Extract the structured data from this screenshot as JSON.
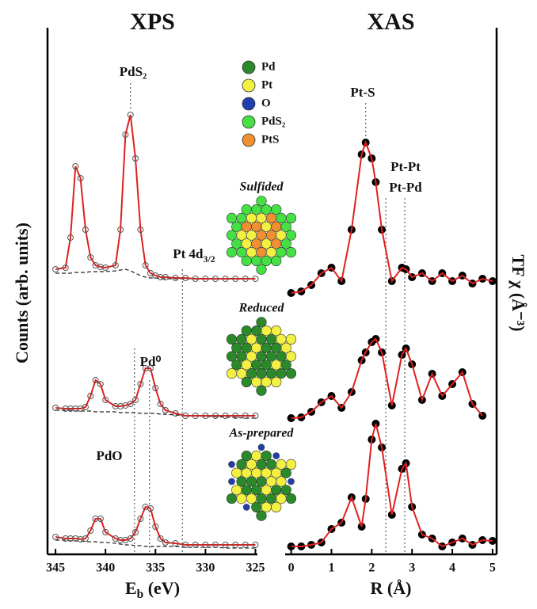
{
  "chart_data": [
    {
      "type": "line",
      "title": "XPS",
      "y_label": "Counts (arb. units)",
      "y_axis_side": "left",
      "x_label": {
        "text": "E",
        "sub": "b",
        "tail": " (eV)"
      },
      "xlim": [
        345.8,
        324.8
      ],
      "xticks": [
        345,
        340,
        335,
        330,
        325
      ],
      "ylim": [
        0,
        66
      ],
      "fit_color": "#e02020",
      "data_color": "#555555",
      "background_color": "#222222",
      "x": [
        345,
        344,
        343.5,
        343,
        342.5,
        342,
        341.5,
        341,
        340.5,
        340,
        339,
        338.5,
        338,
        337.5,
        337,
        336.5,
        336,
        335.5,
        335,
        334.5,
        334,
        333,
        332,
        331,
        330,
        329,
        328,
        327,
        326,
        325
      ],
      "series": [
        {
          "values": [
            36.0,
            36.2,
            40,
            49,
            47.5,
            41,
            37.5,
            36.5,
            36.3,
            36.2,
            36.5,
            41,
            53,
            55.5,
            50,
            41,
            36.5,
            35.5,
            35.2,
            35,
            35,
            34.9,
            34.9,
            34.8,
            34.8,
            34.8,
            34.8,
            34.8,
            34.8,
            34.8
          ],
          "background": [
            35.5,
            35.5,
            35.5,
            35.6,
            35.6,
            35.6,
            35.7,
            35.7,
            35.7,
            35.7,
            35.8,
            35.9,
            36,
            35.8,
            35.5,
            35.2,
            35,
            34.9,
            34.9,
            34.8,
            34.8,
            34.8,
            34.8,
            34.8,
            34.8,
            34.8,
            34.8,
            34.8,
            34.8,
            34.8
          ]
        },
        {
          "values": [
            18.5,
            18.4,
            18.4,
            18.4,
            18.4,
            18.6,
            20,
            22,
            21.5,
            19.5,
            18.7,
            18.7,
            18.8,
            19,
            19.5,
            21.5,
            23.5,
            23.5,
            21,
            19,
            18.2,
            17.8,
            17.5,
            17.5,
            17.5,
            17.5,
            17.5,
            17.5,
            17.5,
            17.5
          ],
          "background": [
            18.2,
            18.2,
            18.2,
            18.1,
            18.1,
            18.1,
            18.1,
            18.0,
            18.0,
            18.0,
            18.0,
            17.9,
            17.9,
            17.9,
            17.9,
            17.8,
            17.8,
            17.8,
            17.8,
            17.7,
            17.7,
            17.6,
            17.5,
            17.5,
            17.4,
            17.4,
            17.3,
            17.3,
            17.2,
            17.2
          ]
        },
        {
          "values": [
            2.2,
            2.0,
            2.0,
            2.0,
            1.9,
            2.0,
            3.0,
            4.5,
            4.5,
            2.8,
            2.0,
            1.8,
            1.8,
            2.0,
            2.8,
            4.5,
            6.0,
            5.8,
            3.5,
            2.0,
            1.5,
            1.4,
            1.2,
            1.2,
            1.2,
            1.2,
            1.2,
            1.2,
            1.2,
            1.2
          ],
          "background": [
            1.8,
            1.8,
            1.7,
            1.7,
            1.7,
            1.6,
            1.6,
            1.6,
            1.5,
            1.5,
            1.4,
            1.3,
            1.2,
            1.2,
            1.1,
            1.1,
            1.0,
            1.0,
            1.0,
            1.0,
            1.0,
            1.0,
            0.9,
            0.9,
            0.9,
            0.9,
            0.8,
            0.8,
            0.8,
            0.8
          ]
        }
      ],
      "ref_lines": [
        337.5,
        337.1,
        335.6,
        332.3
      ],
      "annotations": [
        {
          "text": "PdS₂"
        },
        {
          "text": "Pt 4d",
          "sub": "3/2"
        },
        {
          "text": "Pd⁰"
        },
        {
          "text": "PdO"
        }
      ]
    },
    {
      "type": "line",
      "title": "XAS",
      "y_label": "TF χ (Å⁻³)",
      "y_axis_side": "right",
      "x_label": {
        "text": "R (Å)"
      },
      "xlim": [
        -0.15,
        5.1
      ],
      "xticks": [
        0,
        1,
        2,
        3,
        4,
        5
      ],
      "ylim": [
        0,
        66
      ],
      "fit_color": "#e02020",
      "data_color": "#000000",
      "x": [
        0,
        0.25,
        0.5,
        0.75,
        1,
        1.25,
        1.5,
        1.75,
        1.85,
        2,
        2.1,
        2.25,
        2.5,
        2.75,
        2.85,
        3,
        3.25,
        3.5,
        3.75,
        4,
        4.25,
        4.5,
        4.75,
        5
      ],
      "series": [
        {
          "values": [
            33,
            33.2,
            34,
            35.5,
            36.2,
            34.5,
            41,
            50.5,
            52,
            50,
            47,
            41,
            34.5,
            36.2,
            36,
            35,
            35.5,
            34.5,
            35.5,
            34.5,
            35.2,
            34.2,
            34.8,
            34.5
          ]
        },
        {
          "values": [
            17.2,
            17.3,
            18,
            19.2,
            20,
            18.5,
            20.5,
            24.5,
            25.5,
            26.8,
            27.2,
            25.5,
            18.8,
            25.2,
            26,
            24,
            19.5,
            22.8,
            20,
            21.5,
            23,
            19,
            17.5,
            null
          ]
        },
        {
          "values": [
            1.0,
            1.0,
            1.2,
            1.5,
            3.2,
            4,
            7.2,
            3.5,
            7,
            14.5,
            16.5,
            13.5,
            5,
            10.8,
            11.5,
            6,
            2.5,
            2.0,
            1.0,
            1.5,
            2.0,
            1.2,
            1.8,
            1.7
          ]
        }
      ],
      "ref_lines": [
        1.85,
        2.35,
        2.82
      ],
      "annotations": [
        {
          "text": "Pt-S"
        },
        {
          "text": "Pt-Pt"
        },
        {
          "text": "Pt-Pd"
        }
      ]
    }
  ],
  "legend": [
    {
      "name": "Pd",
      "color": "#2a8a2a"
    },
    {
      "name": "Pt",
      "color": "#f2f040"
    },
    {
      "name": "O",
      "color": "#1f3fb0"
    },
    {
      "name": "PdS₂",
      "color": "#44e044"
    },
    {
      "name": "PtS",
      "color": "#f09030"
    }
  ],
  "samples": [
    "Sulfided",
    "Reduced",
    "As-prepared"
  ]
}
